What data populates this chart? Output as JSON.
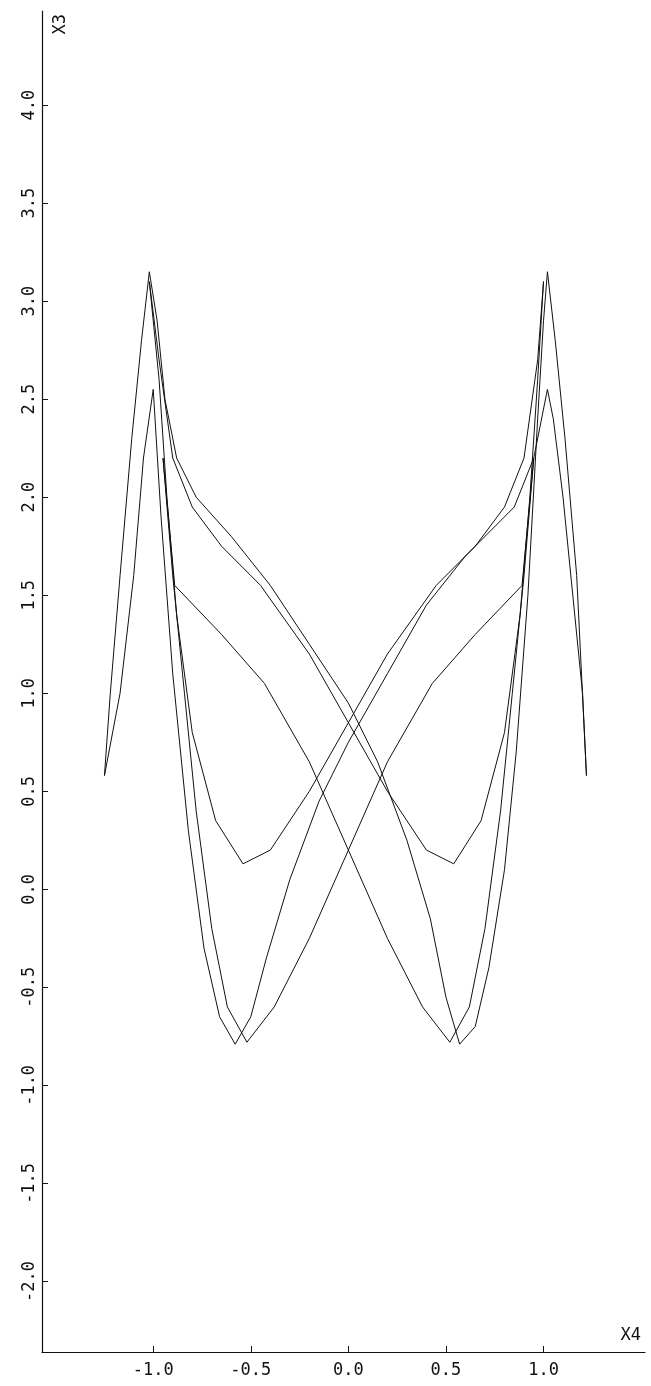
{
  "chart_data": {
    "type": "line",
    "xlabel": "X4",
    "ylabel": "X3",
    "xlim": [
      -1.57,
      1.52
    ],
    "ylim": [
      -2.36,
      4.48
    ],
    "xticks": [
      {
        "value": -1,
        "label": "-1.0"
      },
      -0.5,
      {
        "value": 0,
        "label": "0.0"
      },
      0.5,
      {
        "value": 1,
        "label": "1.0"
      }
    ],
    "yticks": [
      {
        "value": -2,
        "label": "-2.0"
      },
      -1.5,
      {
        "value": -1,
        "label": "-1.0"
      },
      -0.5,
      {
        "value": 0,
        "label": "0.0"
      },
      0.5,
      {
        "value": 1,
        "label": "1.0"
      },
      1.5,
      {
        "value": 2,
        "label": "2.0"
      },
      2.5,
      {
        "value": 3,
        "label": "3.0"
      },
      3.5,
      {
        "value": 4,
        "label": "4.0"
      }
    ],
    "grid": false,
    "marker": "none",
    "line_style": "solid",
    "series": [
      {
        "color": "#111111",
        "x": [
          -1.25,
          -1.22,
          -1.17,
          -1.11,
          -1.06,
          -1.02,
          -0.98,
          -0.94,
          -0.88,
          -0.78,
          -0.6,
          -0.4,
          -0.2,
          0,
          0.15,
          0.3,
          0.42,
          0.5,
          0.57,
          0.65,
          0.72,
          0.8,
          0.86,
          0.92,
          0.97,
          1.0,
          1.02,
          1.06,
          1.11,
          1.17,
          1.22
        ],
        "values": [
          0.58,
          1.0,
          1.6,
          2.3,
          2.8,
          3.15,
          2.9,
          2.5,
          2.2,
          2.0,
          1.8,
          1.55,
          1.25,
          0.95,
          0.65,
          0.25,
          -0.15,
          -0.55,
          -0.79,
          -0.7,
          -0.4,
          0.1,
          0.7,
          1.5,
          2.4,
          2.9,
          3.15,
          2.8,
          2.3,
          1.6,
          0.58
        ]
      },
      {
        "color": "#111111",
        "x": [
          -1.25,
          -1.17,
          -1.1,
          -1.05,
          -1.0,
          -0.96,
          -0.9,
          -0.82,
          -0.74,
          -0.66,
          -0.58,
          -0.5,
          -0.42,
          -0.3,
          -0.15,
          0,
          0.2,
          0.4,
          0.6,
          0.85,
          0.95,
          1.02,
          1.05,
          1.1,
          1.15,
          1.2,
          1.22
        ],
        "values": [
          0.58,
          1.0,
          1.6,
          2.2,
          2.55,
          1.9,
          1.1,
          0.3,
          -0.3,
          -0.65,
          -0.79,
          -0.65,
          -0.35,
          0.05,
          0.45,
          0.75,
          1.1,
          1.45,
          1.7,
          1.95,
          2.2,
          2.55,
          2.4,
          2.0,
          1.5,
          1.0,
          0.58
        ]
      },
      {
        "color": "#111111",
        "x": [
          -1.02,
          -0.97,
          -0.93,
          -0.88,
          -0.8,
          -0.68,
          -0.54,
          -0.4,
          -0.2,
          0,
          0.2,
          0.45,
          0.65,
          0.8,
          0.9,
          0.97,
          1.0
        ],
        "values": [
          3.1,
          2.6,
          2.0,
          1.4,
          0.8,
          0.35,
          0.13,
          0.2,
          0.5,
          0.85,
          1.2,
          1.55,
          1.75,
          1.95,
          2.2,
          2.7,
          3.1
        ]
      },
      {
        "color": "#111111",
        "x": [
          -1.02,
          -0.97,
          -0.9,
          -0.8,
          -0.65,
          -0.45,
          -0.2,
          0,
          0.2,
          0.4,
          0.54,
          0.68,
          0.8,
          0.88,
          0.93,
          0.97,
          1.0
        ],
        "values": [
          3.1,
          2.7,
          2.2,
          1.95,
          1.75,
          1.55,
          1.2,
          0.85,
          0.5,
          0.2,
          0.13,
          0.35,
          0.8,
          1.4,
          2.0,
          2.6,
          3.1
        ]
      },
      {
        "color": "#111111",
        "x": [
          -0.95,
          -0.89,
          -0.65,
          -0.43,
          -0.2,
          0,
          0.2,
          0.38,
          0.52,
          0.62,
          0.7,
          0.78,
          0.84,
          0.9,
          0.95
        ],
        "values": [
          2.2,
          1.55,
          1.3,
          1.05,
          0.65,
          0.2,
          -0.25,
          -0.6,
          -0.78,
          -0.6,
          -0.2,
          0.4,
          1.0,
          1.6,
          2.2
        ]
      },
      {
        "color": "#111111",
        "x": [
          -0.95,
          -0.9,
          -0.84,
          -0.78,
          -0.7,
          -0.62,
          -0.52,
          -0.38,
          -0.2,
          0,
          0.2,
          0.43,
          0.65,
          0.89,
          0.95
        ],
        "values": [
          2.2,
          1.6,
          1.0,
          0.4,
          -0.2,
          -0.6,
          -0.78,
          -0.6,
          -0.25,
          0.2,
          0.65,
          1.05,
          1.3,
          1.55,
          2.2
        ]
      }
    ]
  }
}
